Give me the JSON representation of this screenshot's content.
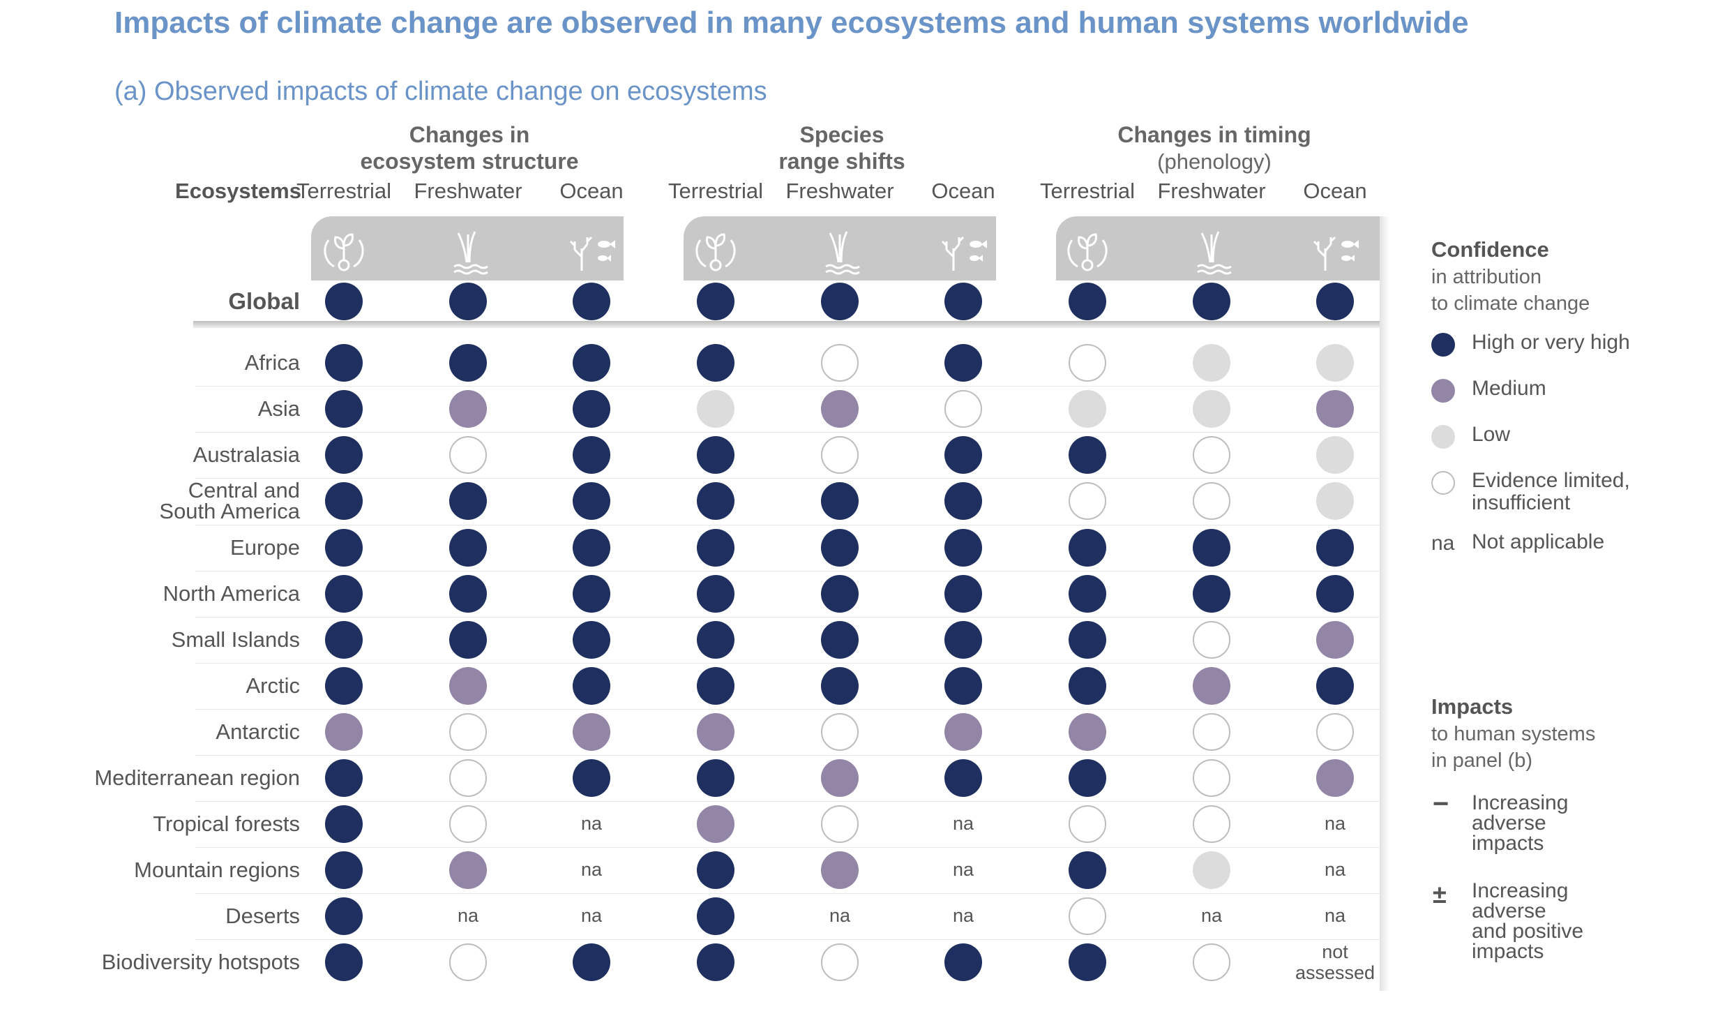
{
  "title": "Impacts of climate change are observed in many ecosystems and human systems worldwide",
  "panel_title": "(a) Observed impacts of climate change on ecosystems",
  "row_header": "Ecosystems",
  "groups": [
    {
      "title": "Changes in\necosystem structure",
      "subtitle": ""
    },
    {
      "title": "Species\nrange shifts",
      "subtitle": ""
    },
    {
      "title": "Changes in timing",
      "subtitle": "(phenology)"
    }
  ],
  "column_labels": [
    "Terrestrial",
    "Freshwater",
    "Ocean",
    "Terrestrial",
    "Freshwater",
    "Ocean",
    "Terrestrial",
    "Freshwater",
    "Ocean"
  ],
  "icons": [
    "terrestrial-plant-icon",
    "freshwater-reeds-icon",
    "ocean-coral-fish-icon"
  ],
  "colors": {
    "high": "#1f3060",
    "medium": "#9385a6",
    "low": "#dcdcdc",
    "limited": "#ffffff",
    "band": "#c8c8c8",
    "title": "#6a93c8"
  },
  "chart_data": {
    "type": "table",
    "title": "Observed impacts of climate change on ecosystems",
    "columns": [
      "Changes in ecosystem structure – Terrestrial",
      "Changes in ecosystem structure – Freshwater",
      "Changes in ecosystem structure – Ocean",
      "Species range shifts – Terrestrial",
      "Species range shifts – Freshwater",
      "Species range shifts – Ocean",
      "Changes in timing (phenology) – Terrestrial",
      "Changes in timing (phenology) – Freshwater",
      "Changes in timing (phenology) – Ocean"
    ],
    "rows": [
      {
        "label": "Global",
        "values": [
          "high",
          "high",
          "high",
          "high",
          "high",
          "high",
          "high",
          "high",
          "high"
        ]
      },
      {
        "label": "Africa",
        "values": [
          "high",
          "high",
          "high",
          "high",
          "limited",
          "high",
          "limited",
          "low",
          "low"
        ]
      },
      {
        "label": "Asia",
        "values": [
          "high",
          "medium",
          "high",
          "low",
          "medium",
          "limited",
          "low",
          "low",
          "medium"
        ]
      },
      {
        "label": "Australasia",
        "values": [
          "high",
          "limited",
          "high",
          "high",
          "limited",
          "high",
          "high",
          "limited",
          "low"
        ]
      },
      {
        "label": "Central and\nSouth America",
        "values": [
          "high",
          "high",
          "high",
          "high",
          "high",
          "high",
          "limited",
          "limited",
          "low"
        ]
      },
      {
        "label": "Europe",
        "values": [
          "high",
          "high",
          "high",
          "high",
          "high",
          "high",
          "high",
          "high",
          "high"
        ]
      },
      {
        "label": "North America",
        "values": [
          "high",
          "high",
          "high",
          "high",
          "high",
          "high",
          "high",
          "high",
          "high"
        ]
      },
      {
        "label": "Small Islands",
        "values": [
          "high",
          "high",
          "high",
          "high",
          "high",
          "high",
          "high",
          "limited",
          "medium"
        ]
      },
      {
        "label": "Arctic",
        "values": [
          "high",
          "medium",
          "high",
          "high",
          "high",
          "high",
          "high",
          "medium",
          "high"
        ]
      },
      {
        "label": "Antarctic",
        "values": [
          "medium",
          "limited",
          "medium",
          "medium",
          "limited",
          "medium",
          "medium",
          "limited",
          "limited"
        ]
      },
      {
        "label": "Mediterranean region",
        "values": [
          "high",
          "limited",
          "high",
          "high",
          "medium",
          "high",
          "high",
          "limited",
          "medium"
        ]
      },
      {
        "label": "Tropical forests",
        "values": [
          "high",
          "limited",
          "na",
          "medium",
          "limited",
          "na",
          "limited",
          "limited",
          "na"
        ]
      },
      {
        "label": "Mountain regions",
        "values": [
          "high",
          "medium",
          "na",
          "high",
          "medium",
          "na",
          "high",
          "low",
          "na"
        ]
      },
      {
        "label": "Deserts",
        "values": [
          "high",
          "na",
          "na",
          "high",
          "na",
          "na",
          "limited",
          "na",
          "na"
        ]
      },
      {
        "label": "Biodiversity hotspots",
        "values": [
          "high",
          "limited",
          "high",
          "high",
          "limited",
          "high",
          "high",
          "limited",
          "not assessed"
        ]
      }
    ],
    "value_text": {
      "na": "na",
      "not assessed": "not\nassessed"
    }
  },
  "legend": {
    "confidence": {
      "title": "Confidence",
      "subtitle": "in attribution\nto climate change",
      "items": [
        {
          "key": "high",
          "label": "High or very high"
        },
        {
          "key": "medium",
          "label": "Medium"
        },
        {
          "key": "low",
          "label": "Low"
        },
        {
          "key": "limited",
          "label": "Evidence limited,\ninsufficient"
        },
        {
          "key": "na",
          "symbol": "na",
          "label": "Not applicable"
        }
      ]
    },
    "impacts": {
      "title": "Impacts",
      "subtitle": "to human systems\nin panel (b)",
      "items": [
        {
          "symbol": "−",
          "label": "Increasing\nadverse\nimpacts"
        },
        {
          "symbol": "±",
          "label": "Increasing\nadverse\nand positive\nimpacts"
        }
      ]
    }
  }
}
